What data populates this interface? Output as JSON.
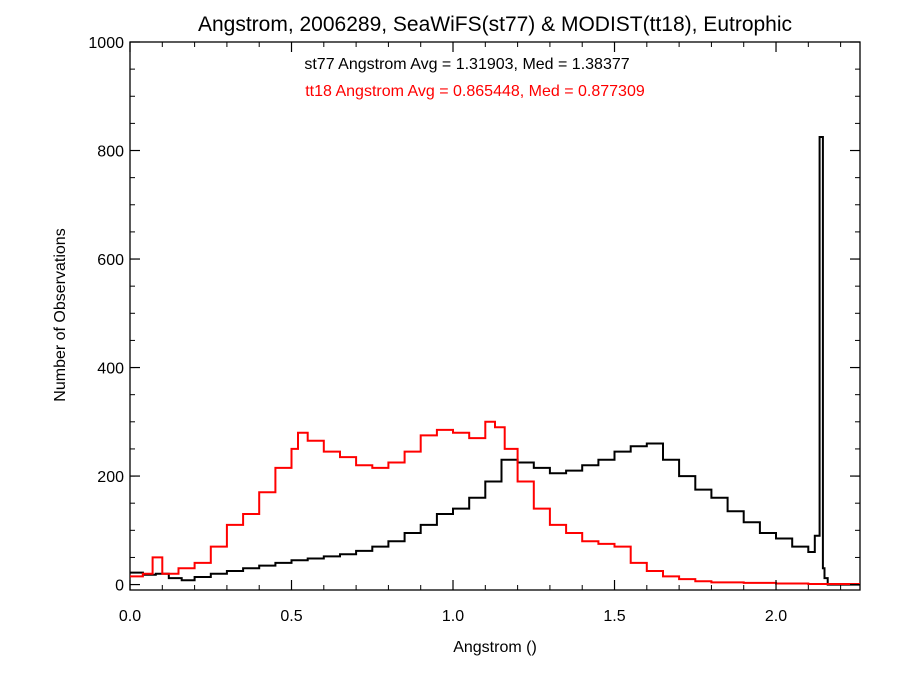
{
  "chart_data": {
    "type": "histogram-step",
    "title": "Angstrom, 2006289, SeaWiFS(st77) & MODIST(tt18), Eutrophic",
    "xlabel": "Angstrom ()",
    "ylabel": "Number of Observations",
    "xlim": [
      0.0,
      2.26
    ],
    "ylim": [
      -10,
      1000
    ],
    "x_ticks": [
      "0.0",
      "0.5",
      "1.0",
      "1.5",
      "2.0"
    ],
    "x_tick_values": [
      0.0,
      0.5,
      1.0,
      1.5,
      2.0
    ],
    "y_ticks": [
      "0",
      "200",
      "400",
      "600",
      "800",
      "1000"
    ],
    "y_tick_values": [
      0,
      200,
      400,
      600,
      800,
      1000
    ],
    "grid": false,
    "annotations": [
      {
        "text": "st77 Angstrom Avg = 1.31903, Med = 1.38377",
        "color": "#000000"
      },
      {
        "text": "tt18 Angstrom Avg = 0.865448, Med = 0.877309",
        "color": "#ff0000"
      }
    ],
    "series": [
      {
        "color": "#000000",
        "x": [
          0.0,
          0.04,
          0.08,
          0.12,
          0.16,
          0.2,
          0.25,
          0.3,
          0.35,
          0.4,
          0.45,
          0.5,
          0.55,
          0.6,
          0.65,
          0.7,
          0.75,
          0.8,
          0.85,
          0.9,
          0.95,
          1.0,
          1.05,
          1.1,
          1.15,
          1.2,
          1.25,
          1.3,
          1.35,
          1.4,
          1.45,
          1.5,
          1.55,
          1.6,
          1.65,
          1.7,
          1.75,
          1.8,
          1.85,
          1.9,
          1.95,
          2.0,
          2.05,
          2.1,
          2.12,
          2.135,
          2.145,
          2.15,
          2.16,
          2.26
        ],
        "y": [
          22,
          18,
          20,
          12,
          8,
          14,
          20,
          25,
          30,
          35,
          40,
          45,
          48,
          52,
          56,
          62,
          70,
          80,
          95,
          110,
          130,
          140,
          160,
          190,
          230,
          225,
          215,
          205,
          210,
          220,
          230,
          245,
          255,
          260,
          230,
          200,
          175,
          160,
          135,
          115,
          95,
          85,
          70,
          60,
          90,
          825,
          30,
          12,
          0,
          0
        ]
      },
      {
        "color": "#ff0000",
        "x": [
          0.0,
          0.04,
          0.07,
          0.1,
          0.15,
          0.2,
          0.25,
          0.3,
          0.35,
          0.4,
          0.45,
          0.5,
          0.52,
          0.55,
          0.6,
          0.65,
          0.7,
          0.75,
          0.8,
          0.85,
          0.9,
          0.95,
          1.0,
          1.05,
          1.1,
          1.13,
          1.16,
          1.2,
          1.25,
          1.3,
          1.35,
          1.4,
          1.45,
          1.5,
          1.55,
          1.6,
          1.65,
          1.7,
          1.75,
          1.8,
          1.9,
          2.0,
          2.1,
          2.26
        ],
        "y": [
          15,
          20,
          50,
          20,
          30,
          40,
          70,
          110,
          130,
          170,
          215,
          250,
          280,
          265,
          245,
          235,
          220,
          215,
          225,
          245,
          275,
          285,
          280,
          270,
          300,
          290,
          250,
          190,
          140,
          110,
          95,
          80,
          75,
          70,
          40,
          25,
          15,
          10,
          6,
          4,
          3,
          2,
          1,
          1
        ]
      }
    ]
  }
}
